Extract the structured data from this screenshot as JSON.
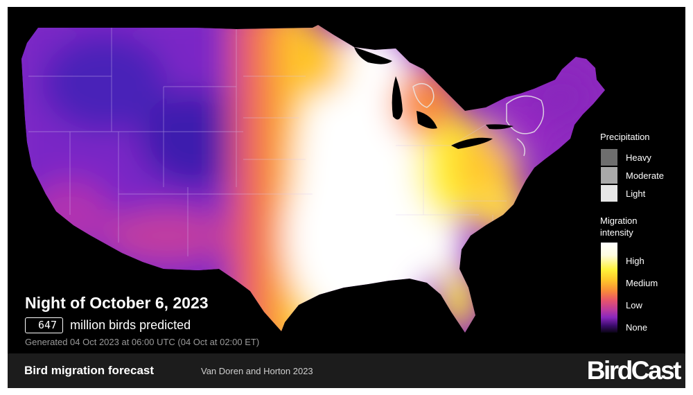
{
  "forecast": {
    "night_title": "Night of October 6, 2023",
    "bird_count": "647",
    "count_caption": "million birds predicted",
    "generated": "Generated 04 Oct 2023 at 06:00 UTC (04 Oct at 02:00 ET)"
  },
  "legend": {
    "precipitation": {
      "title": "Precipitation",
      "levels": [
        {
          "label": "Heavy",
          "color": "#6e6e6e"
        },
        {
          "label": "Moderate",
          "color": "#a9a9a9"
        },
        {
          "label": "Light",
          "color": "#e6e6e6"
        }
      ]
    },
    "migration": {
      "title": "Migration intensity",
      "levels": [
        "High",
        "Medium",
        "Low",
        "None"
      ],
      "colors": [
        "#ffffff",
        "#fff23a",
        "#ffc52a",
        "#f98a3a",
        "#e8556a",
        "#c03c9a",
        "#8a27bd",
        "#3d0c6e",
        "#0a0414"
      ]
    }
  },
  "footer": {
    "title": "Bird migration forecast",
    "credit": "Van Doren and Horton 2023",
    "logo": "BirdCast"
  },
  "map": {
    "region": "Contiguous United States",
    "background_color": "#000000",
    "intensity_by_region": [
      {
        "region": "Pacific Northwest",
        "level": "Low"
      },
      {
        "region": "Northern Rockies",
        "level": "Low"
      },
      {
        "region": "Great Basin",
        "level": "Low"
      },
      {
        "region": "Southwest",
        "level": "Low"
      },
      {
        "region": "Great Plains",
        "level": "Medium"
      },
      {
        "region": "Central Plains to Texas",
        "level": "High"
      },
      {
        "region": "Mississippi Valley",
        "level": "High"
      },
      {
        "region": "Great Lakes",
        "level": "Medium"
      },
      {
        "region": "Ohio Valley",
        "level": "Medium"
      },
      {
        "region": "Southeast",
        "level": "High"
      },
      {
        "region": "Florida",
        "level": "Medium"
      },
      {
        "region": "Northeast",
        "level": "Low"
      }
    ]
  }
}
